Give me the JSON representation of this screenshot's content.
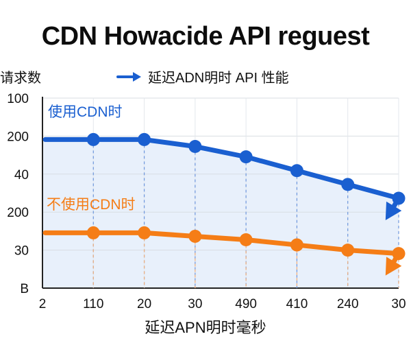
{
  "chart_data": {
    "type": "line",
    "title": "CDN Howacide API reguest",
    "ylabel": "请求数",
    "xlabel": "延迟APN明时毫秒",
    "legend": {
      "label": "延迟ADN明时 API 性能",
      "placement": "top-center",
      "color": "#1a5fd0"
    },
    "x_ticks": [
      "2",
      "110",
      "20",
      "30",
      "490",
      "410",
      "240",
      "30"
    ],
    "y_ticks": [
      "B",
      "30",
      "200",
      "40",
      "200",
      "100"
    ],
    "grid": true,
    "series": [
      {
        "name": "使用CDN时",
        "color": "#1a5fd0",
        "values": [
          4.3,
          4.3,
          4.1,
          3.8,
          3.4,
          3.0,
          2.6
        ]
      },
      {
        "name": "不使用CDN时",
        "color": "#f57d16",
        "values": [
          1.6,
          1.6,
          1.5,
          1.4,
          1.25,
          1.1,
          1.0
        ]
      }
    ]
  }
}
